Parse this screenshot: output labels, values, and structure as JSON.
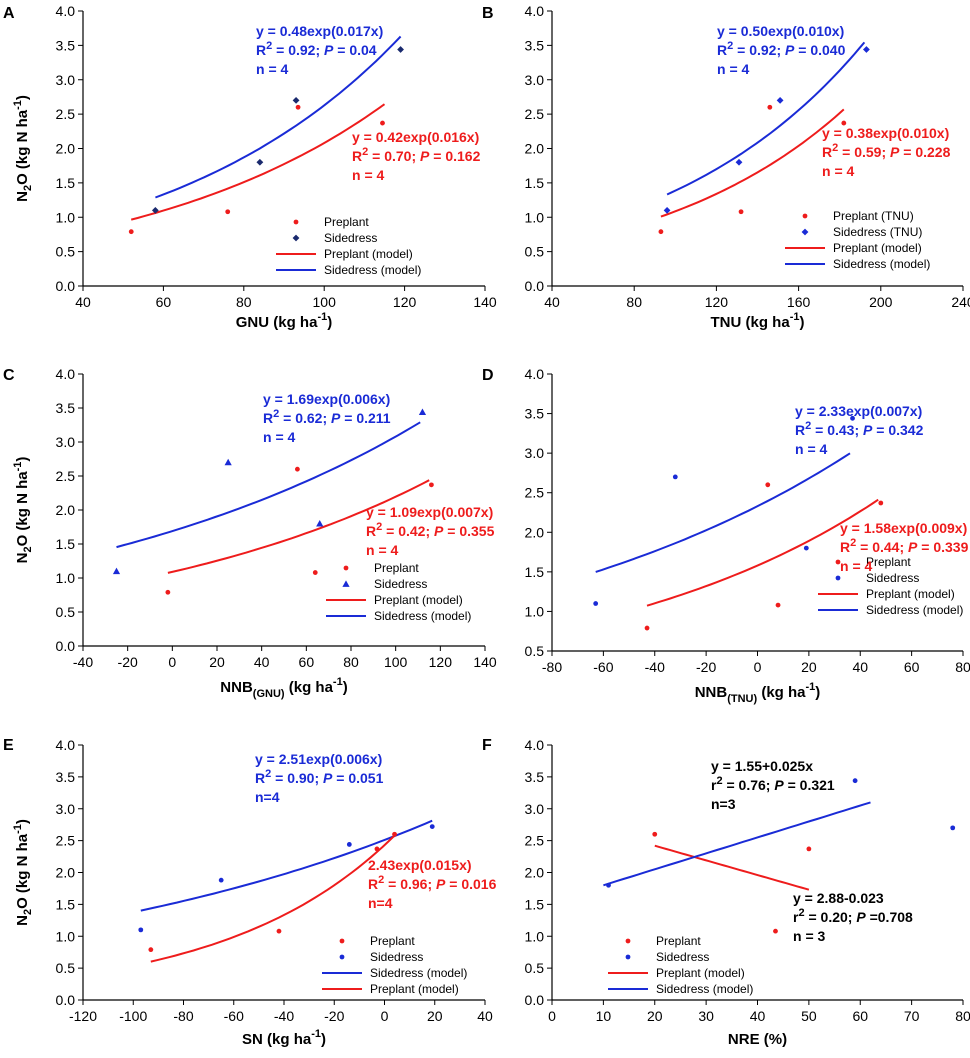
{
  "colors": {
    "red": "#ee1c1c",
    "blue": "#1a2bd6",
    "navy": "#1a2a6e",
    "black": "#000000"
  },
  "chart_data": [
    {
      "id": "A",
      "type": "scatter",
      "xlabel": {
        "main": "GNU (kg ha",
        "sup": "-1",
        "end": ")"
      },
      "ylabel": "N2O (kg N ha-1)",
      "xlim": [
        40,
        140
      ],
      "xticks": [
        40,
        60,
        80,
        100,
        120,
        140
      ],
      "ylim": [
        0,
        4
      ],
      "yticks": [
        0,
        0.5,
        1,
        1.5,
        2,
        2.5,
        3,
        3.5,
        4
      ],
      "series": [
        {
          "name": "Preplant",
          "color": "#ee1c1c",
          "marker": "dot",
          "points": [
            [
              52,
              0.79
            ],
            [
              76,
              1.08
            ],
            [
              93.5,
              2.6
            ],
            [
              114.5,
              2.37
            ]
          ]
        },
        {
          "name": "Sidedress",
          "color": "#1a2a6e",
          "marker": "diamond",
          "points": [
            [
              58,
              1.1
            ],
            [
              84,
              1.8
            ],
            [
              93,
              2.7
            ],
            [
              119,
              3.44
            ]
          ]
        }
      ],
      "models": [
        {
          "name": "Preplant (model)",
          "color": "#ee1c1c",
          "kind": "exp",
          "a": 0.42,
          "b": 0.016,
          "x_range": [
            52,
            115
          ]
        },
        {
          "name": "Sidedress (model)",
          "color": "#1a2bd6",
          "kind": "exp",
          "a": 0.48,
          "b": 0.017,
          "x_range": [
            58,
            119
          ]
        }
      ],
      "legend": [
        "Preplant",
        "Sidedress",
        "Preplant (model)",
        "Sidedress (model)"
      ],
      "annotations": [
        {
          "color": "#1a2bd6",
          "eq": "y = 0.48exp(0.017x)",
          "r": "R",
          "p": "0.92; ",
          "pv": " = 0.04",
          "n": "n = 4"
        },
        {
          "color": "#ee1c1c",
          "eq": "y = 0.42exp(0.016x)",
          "r": "R",
          "p": "0.70; ",
          "pv": " = 0.162",
          "n": "n = 4"
        }
      ]
    },
    {
      "id": "B",
      "type": "scatter",
      "xlabel": {
        "main": "TNU  (kg ha",
        "sup": "-1",
        "end": ")"
      },
      "ylabel": "",
      "xlim": [
        40,
        240
      ],
      "xticks": [
        40,
        80,
        120,
        160,
        200,
        240
      ],
      "ylim": [
        0,
        4
      ],
      "yticks": [
        0,
        0.5,
        1,
        1.5,
        2,
        2.5,
        3,
        3.5,
        4
      ],
      "series": [
        {
          "name": "Preplant (TNU)",
          "color": "#ee1c1c",
          "marker": "dot",
          "points": [
            [
              93,
              0.79
            ],
            [
              132,
              1.08
            ],
            [
              146,
              2.6
            ],
            [
              182,
              2.37
            ]
          ]
        },
        {
          "name": "Sidedress (TNU)",
          "color": "#1a2bd6",
          "marker": "diamond",
          "points": [
            [
              96,
              1.1
            ],
            [
              131,
              1.8
            ],
            [
              151,
              2.7
            ],
            [
              193,
              3.44
            ]
          ]
        }
      ],
      "models": [
        {
          "name": "Preplant (model)",
          "color": "#ee1c1c",
          "kind": "exp",
          "a": 0.38,
          "b": 0.0105,
          "x_range": [
            93,
            182
          ]
        },
        {
          "name": "Sidedress (model)",
          "color": "#1a2bd6",
          "kind": "exp",
          "a": 0.5,
          "b": 0.0102,
          "x_range": [
            96,
            192
          ]
        }
      ],
      "legend": [
        "Preplant (TNU)",
        "Sidedress (TNU)",
        "Preplant (model)",
        "Sidedress (model)"
      ],
      "annotations": [
        {
          "color": "#1a2bd6",
          "eq": "y = 0.50exp(0.010x)",
          "r": "R",
          "p": "0.92; ",
          "pv": " = 0.040",
          "n": "n = 4"
        },
        {
          "color": "#ee1c1c",
          "eq": "y = 0.38exp(0.010x)",
          "r": "R",
          "p": "0.59; ",
          "pv": " = 0.228",
          "n": "n = 4"
        }
      ]
    },
    {
      "id": "C",
      "type": "scatter",
      "xlabel": {
        "main": "NNB",
        "sub": "(GNU)",
        "tail": " (kg ha",
        "sup": "-1",
        "end": ")"
      },
      "ylabel": "N2O (kg N ha-1)",
      "xlim": [
        -40,
        140
      ],
      "xticks": [
        -40,
        -20,
        0,
        20,
        40,
        60,
        80,
        100,
        120,
        140
      ],
      "ylim": [
        0,
        4
      ],
      "yticks": [
        0,
        0.5,
        1,
        1.5,
        2,
        2.5,
        3,
        3.5,
        4
      ],
      "series": [
        {
          "name": "Preplant",
          "color": "#ee1c1c",
          "marker": "dot",
          "points": [
            [
              -2,
              0.79
            ],
            [
              64,
              1.08
            ],
            [
              56,
              2.6
            ],
            [
              116,
              2.37
            ]
          ]
        },
        {
          "name": "Sidedress",
          "color": "#1a2bd6",
          "marker": "triangle",
          "points": [
            [
              -25,
              1.1
            ],
            [
              66,
              1.8
            ],
            [
              25,
              2.7
            ],
            [
              112,
              3.44
            ]
          ]
        }
      ],
      "models": [
        {
          "name": "Preplant (model)",
          "color": "#ee1c1c",
          "kind": "exp",
          "a": 1.09,
          "b": 0.007,
          "x_range": [
            -2,
            115
          ]
        },
        {
          "name": "Sidedress (model)",
          "color": "#1a2bd6",
          "kind": "exp",
          "a": 1.69,
          "b": 0.006,
          "x_range": [
            -25,
            111
          ]
        }
      ],
      "legend": [
        "Preplant",
        "Sidedress",
        "Preplant (model)",
        "Sidedress (model)"
      ],
      "annotations": [
        {
          "color": "#1a2bd6",
          "eq": "y = 1.69exp(0.006x)",
          "r": "R",
          "p": "0.62; ",
          "pv": " = 0.211",
          "n": "n = 4"
        },
        {
          "color": "#ee1c1c",
          "eq": "y = 1.09exp(0.007x)",
          "r": "R",
          "p": "0.42; ",
          "pv": " = 0.355",
          "n": "n = 4"
        }
      ]
    },
    {
      "id": "D",
      "type": "scatter",
      "xlabel": {
        "main": "NNB",
        "sub": "(TNU)",
        "tail": " (kg ha",
        "sup": "-1",
        "end": ")"
      },
      "ylabel": "",
      "xlim": [
        -80,
        80
      ],
      "xticks": [
        -80,
        -60,
        -40,
        -20,
        0,
        20,
        40,
        60,
        80
      ],
      "ylim": [
        0.5,
        4
      ],
      "yticks": [
        0.5,
        1,
        1.5,
        2,
        2.5,
        3,
        3.5,
        4
      ],
      "series": [
        {
          "name": "Preplant",
          "color": "#ee1c1c",
          "marker": "dot",
          "points": [
            [
              -43,
              0.79
            ],
            [
              8,
              1.08
            ],
            [
              4,
              2.6
            ],
            [
              48,
              2.37
            ]
          ]
        },
        {
          "name": "Sidedress",
          "color": "#1a2bd6",
          "marker": "dot",
          "points": [
            [
              -63,
              1.1
            ],
            [
              19,
              1.8
            ],
            [
              -32,
              2.7
            ],
            [
              37,
              3.44
            ]
          ]
        }
      ],
      "models": [
        {
          "name": "Preplant (model)",
          "color": "#ee1c1c",
          "kind": "exp",
          "a": 1.58,
          "b": 0.009,
          "x_range": [
            -43,
            47
          ]
        },
        {
          "name": "Sidedress (model)",
          "color": "#1a2bd6",
          "kind": "exp",
          "a": 2.33,
          "b": 0.007,
          "x_range": [
            -63,
            36
          ]
        }
      ],
      "legend": [
        "Preplant",
        "Sidedress",
        "Preplant (model)",
        "Sidedress (model)"
      ],
      "annotations": [
        {
          "color": "#1a2bd6",
          "eq": "y = 2.33exp(0.007x)",
          "r": "R",
          "p": "0.43; ",
          "pv": " = 0.342",
          "n": "n = 4"
        },
        {
          "color": "#ee1c1c",
          "eq": "y = 1.58exp(0.009x)",
          "r": "R",
          "p": "0.44; ",
          "pv": " = 0.339",
          "n": "n = 4"
        }
      ]
    },
    {
      "id": "E",
      "type": "scatter",
      "xlabel": {
        "main": "SN  (kg ha",
        "sup": "-1",
        "end": ")"
      },
      "ylabel": "N2O (kg N ha-1)",
      "xlim": [
        -120,
        40
      ],
      "xticks": [
        -120,
        -100,
        -80,
        -60,
        -40,
        -20,
        0,
        20,
        40
      ],
      "ylim": [
        0,
        4
      ],
      "yticks": [
        0,
        0.5,
        1,
        1.5,
        2,
        2.5,
        3,
        3.5,
        4
      ],
      "series": [
        {
          "name": "Preplant",
          "color": "#ee1c1c",
          "marker": "dot",
          "points": [
            [
              -93,
              0.79
            ],
            [
              -42,
              1.08
            ],
            [
              4,
              2.6
            ],
            [
              -3,
              2.37
            ]
          ]
        },
        {
          "name": "Sidedress",
          "color": "#1a2bd6",
          "marker": "dot",
          "points": [
            [
              -97,
              1.1
            ],
            [
              -65,
              1.88
            ],
            [
              -14,
              2.44
            ],
            [
              19,
              2.72
            ]
          ]
        }
      ],
      "models": [
        {
          "name": "Sidedress (model)",
          "color": "#1a2bd6",
          "kind": "exp",
          "a": 2.51,
          "b": 0.006,
          "x_range": [
            -97,
            19
          ]
        },
        {
          "name": "Preplant (model)",
          "color": "#ee1c1c",
          "kind": "exp",
          "a": 2.43,
          "b": 0.015,
          "x_range": [
            -93,
            4
          ]
        }
      ],
      "legend": [
        "Preplant",
        "Sidedress",
        "Sidedress (model)",
        "Preplant (model)"
      ],
      "annotations": [
        {
          "color": "#1a2bd6",
          "eq": "y = 2.51exp(0.006x)",
          "r": "R",
          "p": "0.90; ",
          "pv": " = 0.051",
          "n": "n=4"
        },
        {
          "color": "#ee1c1c",
          "eq": "2.43exp(0.015x)",
          "r": "R",
          "p": "0.96; ",
          "pv": " = 0.016",
          "n": "n=4"
        }
      ]
    },
    {
      "id": "F",
      "type": "scatter",
      "xlabel": {
        "main": "NRE (%)"
      },
      "ylabel": "",
      "xlim": [
        0,
        80
      ],
      "xticks": [
        0,
        10,
        20,
        30,
        40,
        50,
        60,
        70,
        80
      ],
      "ylim": [
        0,
        4
      ],
      "yticks": [
        0,
        0.5,
        1,
        1.5,
        2,
        2.5,
        3,
        3.5,
        4
      ],
      "series": [
        {
          "name": "Preplant",
          "color": "#ee1c1c",
          "marker": "dot",
          "points": [
            [
              20,
              2.6
            ],
            [
              43.5,
              1.08
            ],
            [
              50,
              2.37
            ]
          ]
        },
        {
          "name": "Sidedress",
          "color": "#1a2bd6",
          "marker": "dot",
          "points": [
            [
              11,
              1.8
            ],
            [
              59,
              3.44
            ],
            [
              78,
              2.7
            ]
          ]
        }
      ],
      "models": [
        {
          "name": "Preplant (model)",
          "color": "#ee1c1c",
          "kind": "linear",
          "a": 2.88,
          "b": -0.023,
          "x_range": [
            20,
            50
          ]
        },
        {
          "name": "Sidedress (model)",
          "color": "#1a2bd6",
          "kind": "linear",
          "a": 1.55,
          "b": 0.025,
          "x_range": [
            10,
            62
          ]
        }
      ],
      "legend": [
        "Preplant",
        "Sidedress",
        "Preplant (model)",
        "Sidedress (model)"
      ],
      "annotations": [
        {
          "color": "#000000",
          "eq": "y = 1.55+0.025x",
          "r": "r",
          "p": "0.76; ",
          "pv": " = 0.321",
          "n": "n=3"
        },
        {
          "color": "#000000",
          "eq": "y = 2.88-0.023",
          "r": "r",
          "p": "0.20; ",
          "pv": " =0.708",
          "n": "n = 3"
        }
      ]
    }
  ]
}
